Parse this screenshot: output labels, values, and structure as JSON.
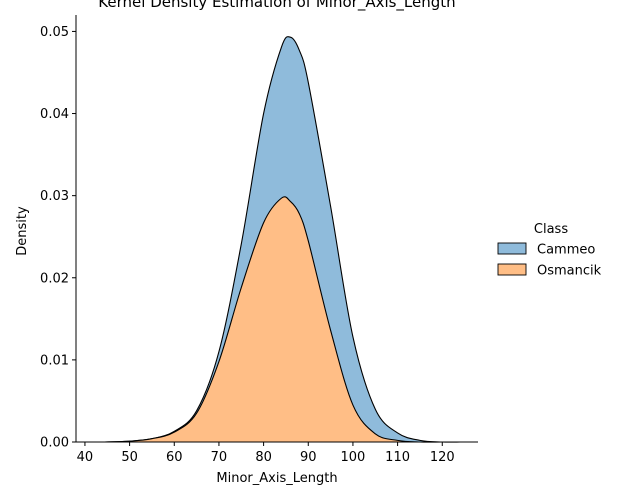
{
  "chart_data": {
    "type": "area",
    "title": "Kernel Density Estimation of Minor_Axis_Length",
    "xlabel": "Minor_Axis_Length",
    "ylabel": "Density",
    "xlim": [
      38,
      128
    ],
    "ylim": [
      0,
      0.052
    ],
    "x_ticks": [
      40,
      50,
      60,
      70,
      80,
      90,
      100,
      110,
      120
    ],
    "y_ticks": [
      0.0,
      0.01,
      0.02,
      0.03,
      0.04,
      0.05
    ],
    "stacking": "stacked",
    "legend": {
      "title": "Class",
      "placement": "right"
    },
    "grid": false,
    "x": [
      44,
      50,
      55,
      60,
      65,
      70,
      75,
      80,
      84,
      86,
      88,
      90,
      95,
      100,
      105,
      110,
      115,
      120,
      124
    ],
    "series": [
      {
        "name": "Osmancik",
        "color": "#ffbe86",
        "values": [
          0.0,
          0.0001,
          0.0004,
          0.0012,
          0.0035,
          0.0098,
          0.0188,
          0.0267,
          0.0297,
          0.0293,
          0.0278,
          0.0245,
          0.0136,
          0.0045,
          0.001,
          0.0002,
          0.0,
          0.0,
          0.0
        ]
      },
      {
        "name": "Cammeo",
        "color": "#8fbbdb",
        "values": [
          0.0,
          0.0,
          0.0,
          0.0001,
          0.0003,
          0.0012,
          0.0053,
          0.0133,
          0.0184,
          0.02,
          0.0199,
          0.0193,
          0.0151,
          0.0083,
          0.003,
          0.0009,
          0.0002,
          0.0,
          0.0
        ]
      }
    ]
  }
}
